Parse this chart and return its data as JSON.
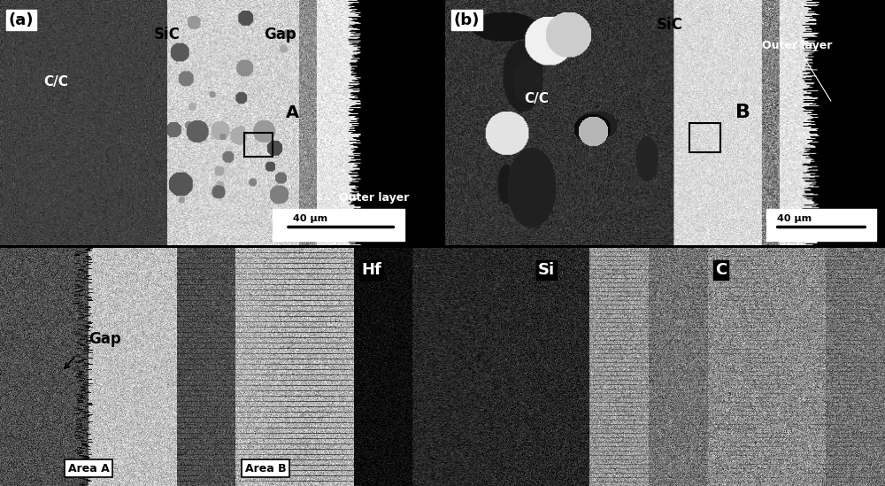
{
  "figure_width": 10.0,
  "figure_height": 5.49,
  "dpi": 100,
  "bg_color": "#000000",
  "panel_a_label": "(a)",
  "panel_b_label": "(b)",
  "panel_a_labels": {
    "CC": "C/C",
    "SiC": "SiC",
    "Gap": "Gap",
    "A": "A",
    "outer_layer": "Outer layer",
    "scale": "40 μm"
  },
  "panel_b_labels": {
    "CC": "C/C",
    "SiC": "SiC",
    "B": "B",
    "outer_layer": "Outer layer",
    "scale": "40 μm"
  },
  "bottom_labels": {
    "area_a": "Area A",
    "area_b": "Area B",
    "hf": "Hf",
    "si": "Si",
    "c": "C",
    "gap": "Gap"
  },
  "seed": 42
}
